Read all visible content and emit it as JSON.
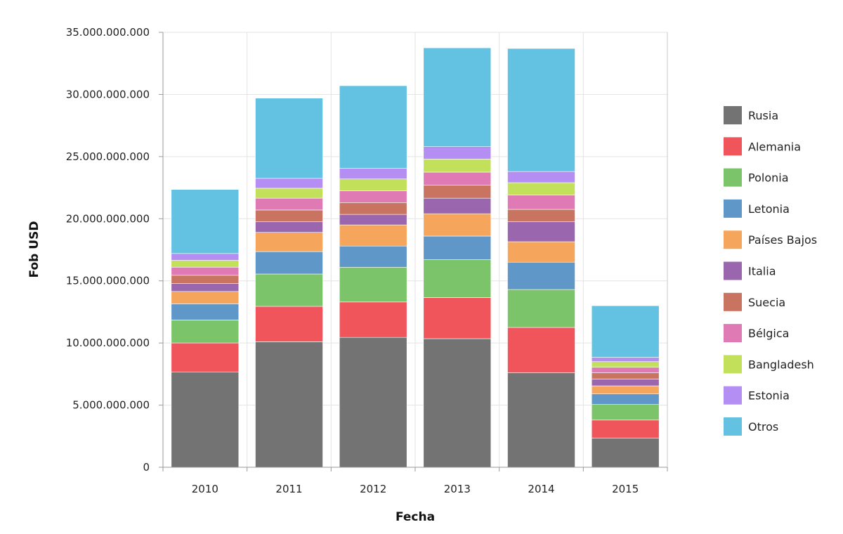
{
  "chart_data": {
    "type": "bar",
    "stacked": true,
    "xlabel": "Fecha",
    "ylabel": "Fob USD",
    "ylim": [
      0,
      35000000000
    ],
    "yticks": [
      0,
      5000000000,
      10000000000,
      15000000000,
      20000000000,
      25000000000,
      30000000000,
      35000000000
    ],
    "ytick_labels": [
      "0",
      "5.000.000.000",
      "10.000.000.000",
      "15.000.000.000",
      "20.000.000.000",
      "25.000.000.000",
      "30.000.000.000",
      "35.000.000.000"
    ],
    "categories": [
      "2010",
      "2011",
      "2012",
      "2013",
      "2014",
      "2015"
    ],
    "grid": true,
    "legend_position": "right",
    "series": [
      {
        "name": "Rusia",
        "color": "#737373",
        "values": [
          7650000000,
          10100000000,
          10450000000,
          10350000000,
          7600000000,
          2350000000
        ]
      },
      {
        "name": "Alemania",
        "color": "#f0555c",
        "values": [
          2350000000,
          2850000000,
          2850000000,
          3300000000,
          3650000000,
          1450000000
        ]
      },
      {
        "name": "Polonia",
        "color": "#7bc46a",
        "values": [
          1850000000,
          2600000000,
          2800000000,
          3050000000,
          3050000000,
          1250000000
        ]
      },
      {
        "name": "Letonia",
        "color": "#5f97c9",
        "values": [
          1300000000,
          1800000000,
          1700000000,
          1900000000,
          2200000000,
          850000000
        ]
      },
      {
        "name": "Países Bajos",
        "color": "#f6a55c",
        "values": [
          1000000000,
          1550000000,
          1700000000,
          1800000000,
          1650000000,
          650000000
        ]
      },
      {
        "name": "Italia",
        "color": "#9a67ae",
        "values": [
          650000000,
          850000000,
          850000000,
          1250000000,
          1600000000,
          550000000
        ]
      },
      {
        "name": "Suecia",
        "color": "#c87460",
        "values": [
          650000000,
          950000000,
          950000000,
          1050000000,
          1000000000,
          500000000
        ]
      },
      {
        "name": "Bélgica",
        "color": "#e07ab4",
        "values": [
          650000000,
          950000000,
          950000000,
          1050000000,
          1150000000,
          450000000
        ]
      },
      {
        "name": "Bangladesh",
        "color": "#c3e05a",
        "values": [
          550000000,
          800000000,
          950000000,
          1050000000,
          1000000000,
          450000000
        ]
      },
      {
        "name": "Estonia",
        "color": "#b48ef2",
        "values": [
          550000000,
          800000000,
          850000000,
          1000000000,
          900000000,
          350000000
        ]
      },
      {
        "name": "Otros",
        "color": "#63c1e2",
        "values": [
          5150000000,
          6450000000,
          6650000000,
          7950000000,
          9900000000,
          4150000000
        ]
      }
    ]
  }
}
